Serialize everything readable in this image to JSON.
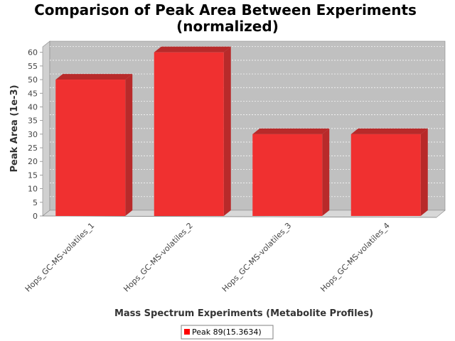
{
  "chart_data": {
    "type": "bar",
    "title_line1": "Comparison of Peak Area Between Experiments",
    "title_line2": "(normalized)",
    "xlabel": "Mass Spectrum Experiments (Metabolite Profiles)",
    "ylabel": "Peak Area (1e-3)",
    "categories": [
      "Hops_GC-MS-volatiles_1",
      "Hops_GC-MS-volatiles_2",
      "Hops_GC-MS-volatiles_3",
      "Hops_GC-MS-volatiles_4"
    ],
    "series": [
      {
        "name": "Peak 89(15.3634)",
        "values": [
          50,
          60,
          30,
          30
        ]
      }
    ],
    "ylim": [
      0,
      62
    ],
    "yticks": [
      0,
      5,
      10,
      15,
      20,
      25,
      30,
      35,
      40,
      45,
      50,
      55,
      60
    ],
    "grid": true,
    "legend": "bottom-center",
    "colors": {
      "bar_front": "#f03030",
      "bar_top": "#b82a2a",
      "bar_side": "#b82a2a",
      "plot_back": "#c0c0c0",
      "plot_floor": "#d8d8d8",
      "plot_side": "#d0d0d0",
      "grid": "#ffffff"
    }
  }
}
